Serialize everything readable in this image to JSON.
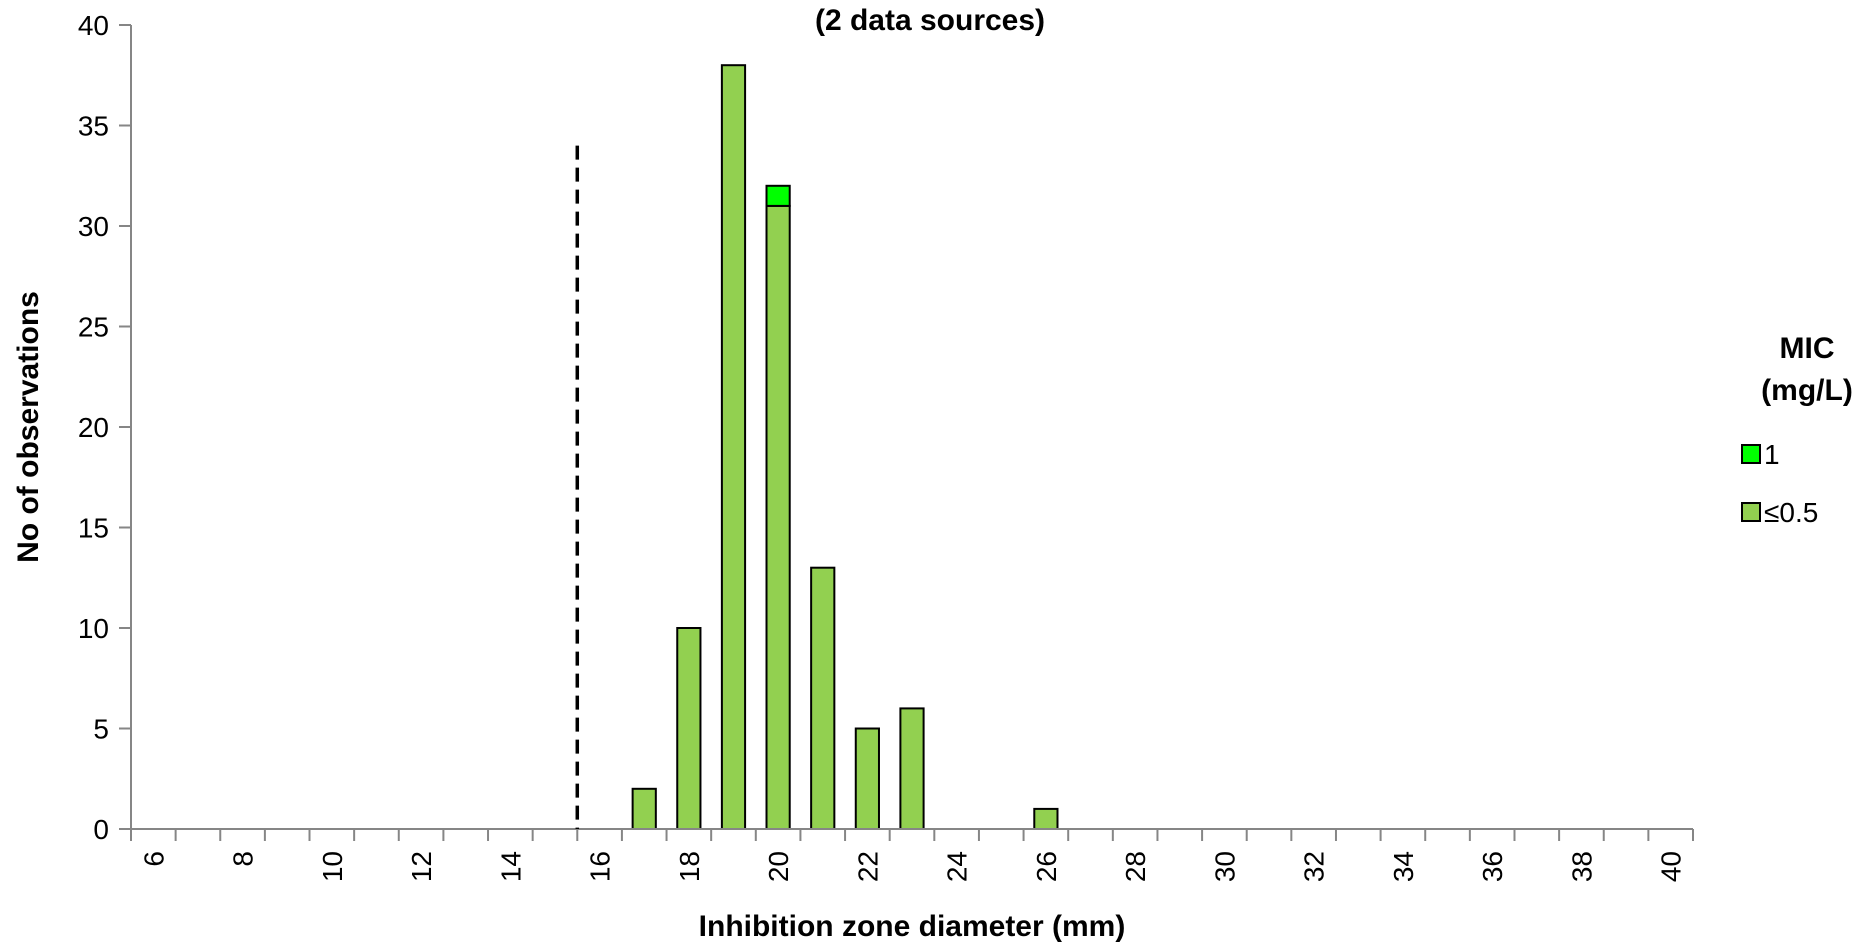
{
  "chart_data": {
    "type": "bar",
    "stacked": true,
    "title": "(2 data sources)",
    "xlabel": "Inhibition zone diameter (mm)",
    "ylabel": "No of observations",
    "xlim": [
      6,
      40
    ],
    "ylim": [
      0,
      40
    ],
    "x_ticks": [
      6,
      8,
      10,
      12,
      14,
      16,
      18,
      20,
      22,
      24,
      26,
      28,
      30,
      32,
      34,
      36,
      38,
      40
    ],
    "y_ticks": [
      0,
      5,
      10,
      15,
      20,
      25,
      30,
      35,
      40
    ],
    "categories": [
      17,
      18,
      19,
      20,
      21,
      22,
      23,
      26
    ],
    "series": [
      {
        "name": "≤0.5",
        "color": "#92d050",
        "values": [
          2,
          10,
          38,
          31,
          13,
          5,
          6,
          1
        ]
      },
      {
        "name": "1",
        "color": "#00ff00",
        "values": [
          0,
          0,
          0,
          1,
          0,
          0,
          0,
          0
        ]
      }
    ],
    "breakpoint": {
      "x": 15.5,
      "style": "dashed",
      "y_max": 34
    },
    "legend": {
      "title_line1": "MIC",
      "title_line2": "(mg/L)",
      "position": "right"
    },
    "grid": false
  }
}
